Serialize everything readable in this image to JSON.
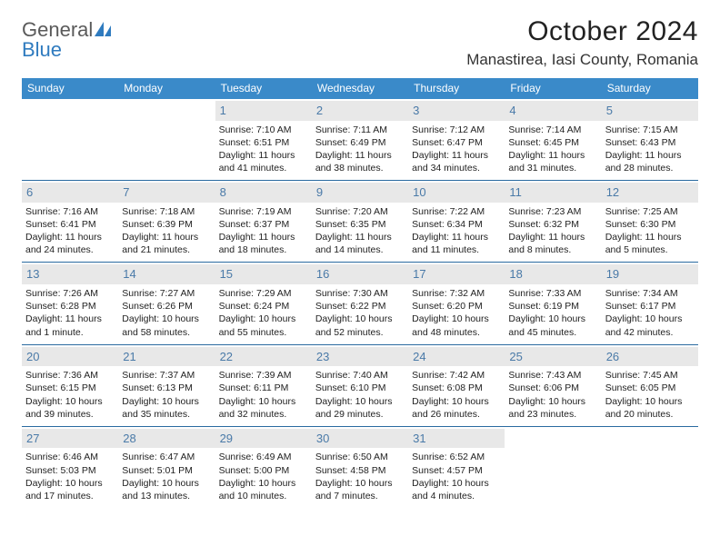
{
  "brand": {
    "part1": "General",
    "part2": "Blue"
  },
  "title": "October 2024",
  "location": "Manastirea, Iasi County, Romania",
  "colors": {
    "header_bg": "#3a8ac9",
    "week_divider": "#2a6aa0",
    "daynum_bg": "#e8e8e8",
    "daynum_color": "#4a7aa8",
    "logo_gray": "#5a5a5a",
    "logo_blue": "#2f7bbf"
  },
  "weekdays": [
    "Sunday",
    "Monday",
    "Tuesday",
    "Wednesday",
    "Thursday",
    "Friday",
    "Saturday"
  ],
  "weeks": [
    [
      null,
      null,
      {
        "n": "1",
        "sr": "Sunrise: 7:10 AM",
        "ss": "Sunset: 6:51 PM",
        "dl": "Daylight: 11 hours and 41 minutes."
      },
      {
        "n": "2",
        "sr": "Sunrise: 7:11 AM",
        "ss": "Sunset: 6:49 PM",
        "dl": "Daylight: 11 hours and 38 minutes."
      },
      {
        "n": "3",
        "sr": "Sunrise: 7:12 AM",
        "ss": "Sunset: 6:47 PM",
        "dl": "Daylight: 11 hours and 34 minutes."
      },
      {
        "n": "4",
        "sr": "Sunrise: 7:14 AM",
        "ss": "Sunset: 6:45 PM",
        "dl": "Daylight: 11 hours and 31 minutes."
      },
      {
        "n": "5",
        "sr": "Sunrise: 7:15 AM",
        "ss": "Sunset: 6:43 PM",
        "dl": "Daylight: 11 hours and 28 minutes."
      }
    ],
    [
      {
        "n": "6",
        "sr": "Sunrise: 7:16 AM",
        "ss": "Sunset: 6:41 PM",
        "dl": "Daylight: 11 hours and 24 minutes."
      },
      {
        "n": "7",
        "sr": "Sunrise: 7:18 AM",
        "ss": "Sunset: 6:39 PM",
        "dl": "Daylight: 11 hours and 21 minutes."
      },
      {
        "n": "8",
        "sr": "Sunrise: 7:19 AM",
        "ss": "Sunset: 6:37 PM",
        "dl": "Daylight: 11 hours and 18 minutes."
      },
      {
        "n": "9",
        "sr": "Sunrise: 7:20 AM",
        "ss": "Sunset: 6:35 PM",
        "dl": "Daylight: 11 hours and 14 minutes."
      },
      {
        "n": "10",
        "sr": "Sunrise: 7:22 AM",
        "ss": "Sunset: 6:34 PM",
        "dl": "Daylight: 11 hours and 11 minutes."
      },
      {
        "n": "11",
        "sr": "Sunrise: 7:23 AM",
        "ss": "Sunset: 6:32 PM",
        "dl": "Daylight: 11 hours and 8 minutes."
      },
      {
        "n": "12",
        "sr": "Sunrise: 7:25 AM",
        "ss": "Sunset: 6:30 PM",
        "dl": "Daylight: 11 hours and 5 minutes."
      }
    ],
    [
      {
        "n": "13",
        "sr": "Sunrise: 7:26 AM",
        "ss": "Sunset: 6:28 PM",
        "dl": "Daylight: 11 hours and 1 minute."
      },
      {
        "n": "14",
        "sr": "Sunrise: 7:27 AM",
        "ss": "Sunset: 6:26 PM",
        "dl": "Daylight: 10 hours and 58 minutes."
      },
      {
        "n": "15",
        "sr": "Sunrise: 7:29 AM",
        "ss": "Sunset: 6:24 PM",
        "dl": "Daylight: 10 hours and 55 minutes."
      },
      {
        "n": "16",
        "sr": "Sunrise: 7:30 AM",
        "ss": "Sunset: 6:22 PM",
        "dl": "Daylight: 10 hours and 52 minutes."
      },
      {
        "n": "17",
        "sr": "Sunrise: 7:32 AM",
        "ss": "Sunset: 6:20 PM",
        "dl": "Daylight: 10 hours and 48 minutes."
      },
      {
        "n": "18",
        "sr": "Sunrise: 7:33 AM",
        "ss": "Sunset: 6:19 PM",
        "dl": "Daylight: 10 hours and 45 minutes."
      },
      {
        "n": "19",
        "sr": "Sunrise: 7:34 AM",
        "ss": "Sunset: 6:17 PM",
        "dl": "Daylight: 10 hours and 42 minutes."
      }
    ],
    [
      {
        "n": "20",
        "sr": "Sunrise: 7:36 AM",
        "ss": "Sunset: 6:15 PM",
        "dl": "Daylight: 10 hours and 39 minutes."
      },
      {
        "n": "21",
        "sr": "Sunrise: 7:37 AM",
        "ss": "Sunset: 6:13 PM",
        "dl": "Daylight: 10 hours and 35 minutes."
      },
      {
        "n": "22",
        "sr": "Sunrise: 7:39 AM",
        "ss": "Sunset: 6:11 PM",
        "dl": "Daylight: 10 hours and 32 minutes."
      },
      {
        "n": "23",
        "sr": "Sunrise: 7:40 AM",
        "ss": "Sunset: 6:10 PM",
        "dl": "Daylight: 10 hours and 29 minutes."
      },
      {
        "n": "24",
        "sr": "Sunrise: 7:42 AM",
        "ss": "Sunset: 6:08 PM",
        "dl": "Daylight: 10 hours and 26 minutes."
      },
      {
        "n": "25",
        "sr": "Sunrise: 7:43 AM",
        "ss": "Sunset: 6:06 PM",
        "dl": "Daylight: 10 hours and 23 minutes."
      },
      {
        "n": "26",
        "sr": "Sunrise: 7:45 AM",
        "ss": "Sunset: 6:05 PM",
        "dl": "Daylight: 10 hours and 20 minutes."
      }
    ],
    [
      {
        "n": "27",
        "sr": "Sunrise: 6:46 AM",
        "ss": "Sunset: 5:03 PM",
        "dl": "Daylight: 10 hours and 17 minutes."
      },
      {
        "n": "28",
        "sr": "Sunrise: 6:47 AM",
        "ss": "Sunset: 5:01 PM",
        "dl": "Daylight: 10 hours and 13 minutes."
      },
      {
        "n": "29",
        "sr": "Sunrise: 6:49 AM",
        "ss": "Sunset: 5:00 PM",
        "dl": "Daylight: 10 hours and 10 minutes."
      },
      {
        "n": "30",
        "sr": "Sunrise: 6:50 AM",
        "ss": "Sunset: 4:58 PM",
        "dl": "Daylight: 10 hours and 7 minutes."
      },
      {
        "n": "31",
        "sr": "Sunrise: 6:52 AM",
        "ss": "Sunset: 4:57 PM",
        "dl": "Daylight: 10 hours and 4 minutes."
      },
      null,
      null
    ]
  ]
}
